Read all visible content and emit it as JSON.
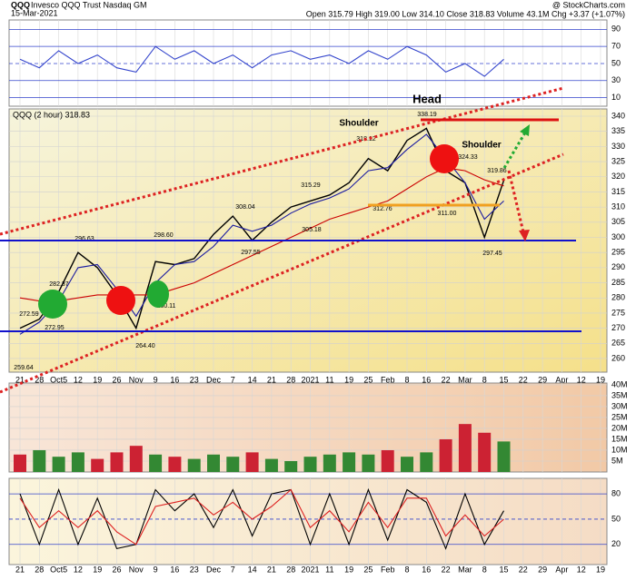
{
  "header": {
    "symbol": "QQQ",
    "name": "Invesco QQQ Trust Nasdaq GM",
    "date": "15-Mar-2021",
    "quote": "Open 315.79 High 319.00 Low 314.10 Close 318.83 Volume 43.1M Chg +3.37 (+1.07%)",
    "credit": "@ StockCharts.com"
  },
  "chart_data": [
    {
      "type": "line",
      "ylim": [
        0,
        101
      ],
      "yticks": [
        10,
        30,
        50,
        70,
        90
      ],
      "series": [
        {
          "color": "#3344cc",
          "values": [
            55,
            45,
            65,
            50,
            60,
            45,
            40,
            70,
            55,
            65,
            50,
            60,
            45,
            60,
            65,
            55,
            60,
            50,
            65,
            55,
            70,
            60,
            40,
            50,
            35,
            55,
            null,
            null,
            null,
            null,
            null
          ]
        }
      ]
    },
    {
      "type": "line",
      "ylim": [
        255.5,
        342.4
      ],
      "yticks": [
        260,
        265,
        270,
        275,
        280,
        285,
        290,
        295,
        300,
        305,
        310,
        315,
        320,
        325,
        330,
        335,
        340
      ],
      "categories": [
        "21",
        "28",
        "Oct5",
        "12",
        "19",
        "26",
        "Nov",
        "9",
        "16",
        "23",
        "Dec",
        "7",
        "14",
        "21",
        "28",
        "2021",
        "11",
        "19",
        "25",
        "Feb",
        "8",
        "16",
        "22",
        "Mar",
        "8",
        "15",
        "22",
        "29",
        "Apr",
        "12",
        "19"
      ],
      "series": [
        {
          "name": "QQQ (2 hour) 318.83",
          "color": "#000000",
          "values": [
            270,
            273,
            282,
            295,
            290,
            281,
            270,
            292,
            291,
            293,
            301,
            307,
            299,
            305,
            310,
            312,
            314,
            318,
            326,
            322,
            332,
            336,
            322,
            318,
            300,
            318.83,
            null,
            null,
            null,
            null,
            null
          ]
        },
        {
          "color": "#1a1aa0",
          "values": [
            268,
            272,
            279,
            290,
            291,
            283,
            274,
            285,
            291,
            292,
            297,
            304,
            302,
            304,
            308,
            311,
            313,
            316,
            322,
            323,
            329,
            334,
            326,
            318,
            306,
            312,
            null,
            null,
            null,
            null,
            null
          ]
        },
        {
          "color": "#cc0000",
          "values": [
            280,
            279,
            279,
            280,
            281,
            281,
            281,
            281,
            283,
            285,
            288,
            291,
            294,
            297,
            300,
            303,
            306,
            308,
            310,
            312,
            316,
            320,
            323,
            322,
            319,
            317,
            null,
            null,
            null,
            null,
            null
          ]
        }
      ],
      "annotations": [
        "Head",
        "Shoulder",
        "Shoulder"
      ],
      "price_labels": [
        "259.64",
        "272.59",
        "282.37",
        "272.95",
        "296.63",
        "298.60",
        "264.40",
        "280.11",
        "308.04",
        "297.55",
        "305.18",
        "315.29",
        "318.12",
        "312.76",
        "338.19",
        "324.33",
        "311.00",
        "319.86",
        "297.45"
      ]
    },
    {
      "type": "bar",
      "ylim": [
        0,
        40.8
      ],
      "yticks": [
        {
          "value": 5,
          "label": "5M"
        },
        {
          "value": 10,
          "label": "10M"
        },
        {
          "value": 15,
          "label": "15M"
        },
        {
          "value": 20,
          "label": "20M"
        },
        {
          "value": 25,
          "label": "25M"
        },
        {
          "value": 30,
          "label": "30M"
        },
        {
          "value": 35,
          "label": "35M"
        },
        {
          "value": 40,
          "label": "40M"
        }
      ],
      "values": [
        8,
        10,
        7,
        9,
        6,
        9,
        12,
        8,
        7,
        6,
        8,
        7,
        9,
        6,
        5,
        7,
        8,
        9,
        8,
        10,
        7,
        9,
        15,
        22,
        18,
        14,
        null,
        null,
        null,
        null,
        null
      ],
      "colors": [
        "#cc2233",
        "#338833",
        "#338833",
        "#338833",
        "#cc2233",
        "#cc2233",
        "#cc2233",
        "#338833",
        "#cc2233",
        "#338833",
        "#338833",
        "#338833",
        "#cc2233",
        "#338833",
        "#338833",
        "#338833",
        "#338833",
        "#338833",
        "#338833",
        "#cc2233",
        "#338833",
        "#338833",
        "#cc2233",
        "#cc2233",
        "#cc2233",
        "#338833",
        "#338833",
        "#338833",
        "#338833",
        "#338833",
        "#338833"
      ]
    },
    {
      "type": "line",
      "ylim": [
        -4,
        98.5
      ],
      "yticks": [
        20,
        50,
        80
      ],
      "series": [
        {
          "color": "#000000",
          "values": [
            80,
            20,
            85,
            20,
            75,
            15,
            20,
            85,
            60,
            80,
            40,
            85,
            30,
            80,
            85,
            20,
            80,
            20,
            85,
            25,
            85,
            70,
            15,
            80,
            20,
            60,
            null,
            null,
            null,
            null,
            null
          ]
        },
        {
          "color": "#dd2222",
          "values": [
            75,
            40,
            60,
            40,
            60,
            35,
            20,
            65,
            70,
            75,
            55,
            70,
            50,
            65,
            85,
            40,
            60,
            35,
            70,
            40,
            75,
            75,
            30,
            55,
            30,
            50,
            null,
            null,
            null,
            null,
            null
          ]
        }
      ]
    }
  ]
}
